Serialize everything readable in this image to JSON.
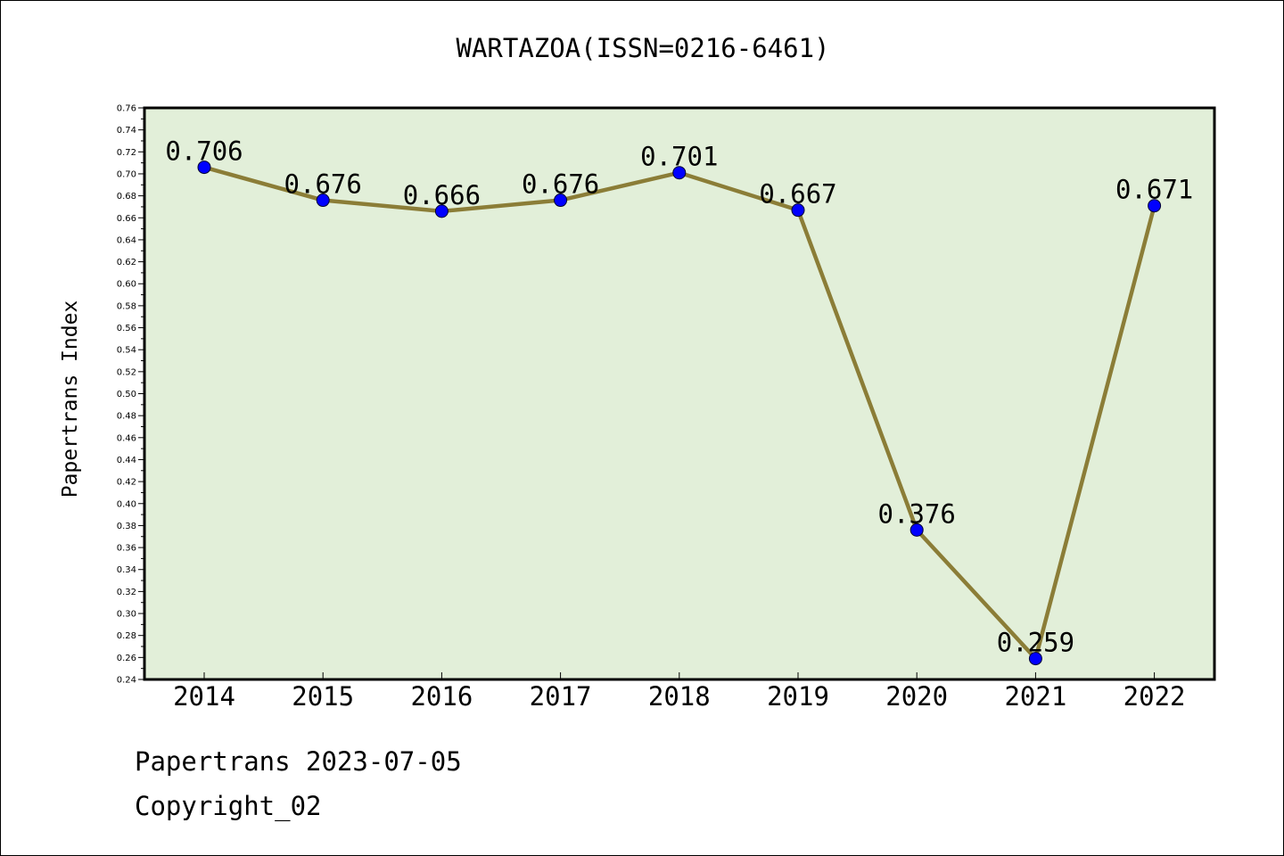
{
  "chart_data": {
    "type": "line",
    "title": "WARTAZOA(ISSN=0216-6461)",
    "xlabel": "",
    "ylabel": "Papertrans Index",
    "x": [
      "2014",
      "2015",
      "2016",
      "2017",
      "2018",
      "2019",
      "2020",
      "2021",
      "2022"
    ],
    "series": [
      {
        "values": [
          0.706,
          0.676,
          0.666,
          0.676,
          0.701,
          0.667,
          0.376,
          0.259,
          0.671
        ],
        "data_labels": [
          "0.706",
          "0.676",
          "0.666",
          "0.676",
          "0.701",
          "0.667",
          "0.376",
          "0.259",
          "0.671"
        ]
      }
    ],
    "ylim": [
      0.24,
      0.76
    ],
    "ytick_step": 0.02,
    "yticks": [
      "0.24",
      "0.26",
      "0.28",
      "0.30",
      "0.32",
      "0.34",
      "0.36",
      "0.38",
      "0.40",
      "0.42",
      "0.44",
      "0.46",
      "0.48",
      "0.50",
      "0.52",
      "0.54",
      "0.56",
      "0.58",
      "0.60",
      "0.62",
      "0.64",
      "0.66",
      "0.68",
      "0.70",
      "0.72",
      "0.74",
      "0.76"
    ],
    "grid": false,
    "legend": "none",
    "colors": {
      "plot_background": "#e2efd9",
      "line": "#8b7d37",
      "marker": "#0000ff",
      "axes": "#000000"
    }
  },
  "footer": {
    "date_line": "Papertrans 2023-07-05",
    "copyright": "Copyright_02"
  }
}
